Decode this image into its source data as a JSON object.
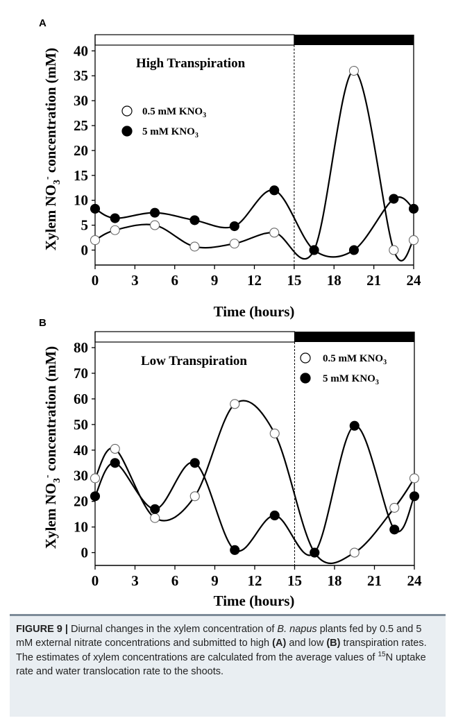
{
  "figure": {
    "caption": {
      "label": "FIGURE 9 |",
      "text_1": " Diurnal changes in the xylem concentration of ",
      "species": "B. napus",
      "text_2": " plants fed by 0.5 and 5 mM external nitrate concentrations and submitted to high ",
      "ref_a": "(A)",
      "text_3": " and low ",
      "ref_b": "(B)",
      "text_4": " transpiration rates. The estimates of xylem concentrations are calculated from the average values of ",
      "isotope_sup": "15",
      "text_5": "N uptake rate and water translocation rate to the shoots."
    }
  },
  "chart_data": [
    {
      "panel": "A",
      "type": "line",
      "smooth": true,
      "annotation": "High Transpiration",
      "ylabel": "Xylem NO3- concentration (mM)",
      "ylabel_parts": [
        "Xylem NO",
        "3",
        "-",
        " concentration (mM)"
      ],
      "xlabel": "Time (hours)",
      "xlim": [
        0,
        24
      ],
      "ylim": [
        -3,
        42
      ],
      "xticks": [
        0,
        3,
        6,
        9,
        12,
        15,
        18,
        21,
        24
      ],
      "yticks": [
        0,
        5,
        10,
        15,
        20,
        25,
        30,
        35,
        40
      ],
      "light_dark_bar": {
        "light": [
          0,
          15
        ],
        "dark": [
          15,
          24
        ]
      },
      "divider_x": 15,
      "legend_position": "upper-left",
      "series": [
        {
          "name": "0.5 mM KNO3",
          "name_parts": [
            "0.5 mM KNO",
            "3"
          ],
          "marker": "open-circle",
          "x": [
            0,
            1.5,
            4.5,
            7.5,
            10.5,
            13.5,
            16.5,
            19.5,
            22.5,
            24
          ],
          "y": [
            2,
            4,
            5,
            0.7,
            1.3,
            3.5,
            0,
            36,
            0,
            2
          ]
        },
        {
          "name": "5 mM KNO3",
          "name_parts": [
            "5 mM KNO",
            "3"
          ],
          "marker": "filled-circle",
          "x": [
            0,
            1.5,
            4.5,
            7.5,
            10.5,
            13.5,
            16.5,
            19.5,
            22.5,
            24
          ],
          "y": [
            8.3,
            6.4,
            7.5,
            6,
            4.8,
            12,
            0,
            0,
            10.3,
            8.3
          ]
        }
      ]
    },
    {
      "panel": "B",
      "type": "line",
      "smooth": true,
      "annotation": "Low Transpiration",
      "ylabel": "Xylem NO3- concentration (mM)",
      "ylabel_parts": [
        "Xylem NO",
        "3",
        "-",
        " concentration (mM)"
      ],
      "xlabel": "Time (hours)",
      "xlim": [
        0,
        24
      ],
      "ylim": [
        -5,
        83
      ],
      "xticks": [
        0,
        3,
        6,
        9,
        12,
        15,
        18,
        21,
        24
      ],
      "yticks": [
        0,
        10,
        20,
        30,
        40,
        50,
        60,
        70,
        80
      ],
      "light_dark_bar": {
        "light": [
          0,
          15
        ],
        "dark": [
          15,
          24
        ]
      },
      "divider_x": 15,
      "legend_position": "upper-right",
      "series": [
        {
          "name": "0.5 mM KNO3",
          "name_parts": [
            "0.5 mM KNO",
            "3"
          ],
          "marker": "open-circle",
          "x": [
            0,
            1.5,
            4.5,
            7.5,
            10.5,
            13.5,
            16.5,
            19.5,
            22.5,
            24
          ],
          "y": [
            29,
            40.5,
            13.5,
            22,
            58,
            46.5,
            0,
            0,
            17.5,
            29
          ]
        },
        {
          "name": "5 mM KNO3",
          "name_parts": [
            "5 mM KNO",
            "3"
          ],
          "marker": "filled-circle",
          "x": [
            0,
            1.5,
            4.5,
            7.5,
            10.5,
            13.5,
            16.5,
            19.5,
            22.5,
            24
          ],
          "y": [
            22,
            35,
            17,
            35,
            1,
            14.5,
            0,
            49.5,
            9,
            22
          ]
        }
      ]
    }
  ]
}
